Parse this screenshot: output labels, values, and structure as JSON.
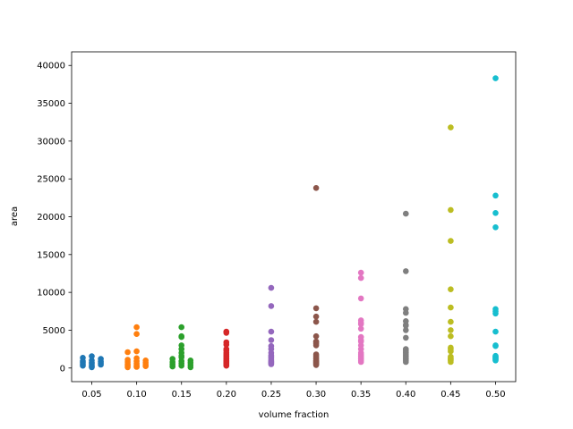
{
  "chart_data": {
    "type": "scatter",
    "title": "",
    "xlabel": "volume fraction",
    "ylabel": "area",
    "ylim": [
      -1800,
      41800
    ],
    "yticks": [
      0,
      5000,
      10000,
      15000,
      20000,
      25000,
      30000,
      35000,
      40000
    ],
    "ytick_labels": [
      "0",
      "5000",
      "10000",
      "15000",
      "20000",
      "25000",
      "30000",
      "35000",
      "40000"
    ],
    "categories": [
      "0.05",
      "0.10",
      "0.15",
      "0.20",
      "0.25",
      "0.30",
      "0.35",
      "0.40",
      "0.45",
      "0.50"
    ],
    "grid": false,
    "legend": "none",
    "colors": [
      "#1f77b4",
      "#ff7f0e",
      "#2ca02c",
      "#d62728",
      "#9467bd",
      "#8c564b",
      "#e377c2",
      "#7f7f7f",
      "#bcbd22",
      "#17becf"
    ],
    "series": [
      {
        "category": "0.05",
        "points": [
          [
            0.05,
            1550
          ],
          [
            0.04,
            1350
          ],
          [
            0.06,
            1200
          ],
          [
            0.05,
            1000
          ],
          [
            0.04,
            900
          ],
          [
            0.06,
            850
          ],
          [
            0.05,
            750
          ],
          [
            0.04,
            700
          ],
          [
            0.06,
            650
          ],
          [
            0.05,
            600
          ],
          [
            0.04,
            500
          ],
          [
            0.06,
            450
          ],
          [
            0.05,
            400
          ],
          [
            0.04,
            300
          ],
          [
            0.05,
            200
          ],
          [
            0.05,
            100
          ]
        ]
      },
      {
        "category": "0.10",
        "points": [
          [
            0.1,
            5400
          ],
          [
            0.1,
            4500
          ],
          [
            0.1,
            2200
          ],
          [
            0.09,
            2100
          ],
          [
            0.1,
            1300
          ],
          [
            0.09,
            1100
          ],
          [
            0.11,
            1000
          ],
          [
            0.1,
            900
          ],
          [
            0.09,
            800
          ],
          [
            0.11,
            700
          ],
          [
            0.1,
            600
          ],
          [
            0.09,
            500
          ],
          [
            0.11,
            450
          ],
          [
            0.1,
            400
          ],
          [
            0.09,
            300
          ],
          [
            0.11,
            250
          ],
          [
            0.1,
            200
          ],
          [
            0.1,
            150
          ],
          [
            0.09,
            100
          ]
        ]
      },
      {
        "category": "0.15",
        "points": [
          [
            0.15,
            5400
          ],
          [
            0.15,
            4200
          ],
          [
            0.15,
            4100
          ],
          [
            0.15,
            3000
          ],
          [
            0.15,
            2500
          ],
          [
            0.15,
            2000
          ],
          [
            0.15,
            1600
          ],
          [
            0.15,
            1400
          ],
          [
            0.14,
            1200
          ],
          [
            0.16,
            1000
          ],
          [
            0.15,
            900
          ],
          [
            0.14,
            800
          ],
          [
            0.16,
            700
          ],
          [
            0.15,
            600
          ],
          [
            0.14,
            500
          ],
          [
            0.16,
            400
          ],
          [
            0.15,
            300
          ],
          [
            0.14,
            200
          ],
          [
            0.16,
            100
          ]
        ]
      },
      {
        "category": "0.20",
        "points": [
          [
            0.2,
            4800
          ],
          [
            0.2,
            4650
          ],
          [
            0.2,
            3400
          ],
          [
            0.2,
            3100
          ],
          [
            0.2,
            2500
          ],
          [
            0.2,
            2300
          ],
          [
            0.2,
            2000
          ],
          [
            0.2,
            1800
          ],
          [
            0.2,
            1600
          ],
          [
            0.2,
            1400
          ],
          [
            0.2,
            1200
          ],
          [
            0.2,
            1000
          ],
          [
            0.2,
            900
          ],
          [
            0.2,
            800
          ],
          [
            0.2,
            700
          ],
          [
            0.2,
            600
          ],
          [
            0.2,
            500
          ],
          [
            0.2,
            400
          ],
          [
            0.2,
            300
          ]
        ]
      },
      {
        "category": "0.25",
        "points": [
          [
            0.25,
            10600
          ],
          [
            0.25,
            8200
          ],
          [
            0.25,
            4800
          ],
          [
            0.25,
            3700
          ],
          [
            0.25,
            2900
          ],
          [
            0.25,
            2500
          ],
          [
            0.25,
            2000
          ],
          [
            0.25,
            1700
          ],
          [
            0.25,
            1500
          ],
          [
            0.25,
            1300
          ],
          [
            0.25,
            1100
          ],
          [
            0.25,
            900
          ],
          [
            0.25,
            800
          ],
          [
            0.25,
            700
          ],
          [
            0.25,
            600
          ],
          [
            0.25,
            500
          ]
        ]
      },
      {
        "category": "0.30",
        "points": [
          [
            0.3,
            23800
          ],
          [
            0.3,
            7900
          ],
          [
            0.3,
            6800
          ],
          [
            0.3,
            6100
          ],
          [
            0.3,
            4200
          ],
          [
            0.3,
            3500
          ],
          [
            0.3,
            3400
          ],
          [
            0.3,
            3200
          ],
          [
            0.3,
            3000
          ],
          [
            0.3,
            1800
          ],
          [
            0.3,
            1600
          ],
          [
            0.3,
            1400
          ],
          [
            0.3,
            1200
          ],
          [
            0.3,
            1000
          ],
          [
            0.3,
            900
          ],
          [
            0.3,
            800
          ],
          [
            0.3,
            700
          ],
          [
            0.3,
            600
          ],
          [
            0.3,
            500
          ],
          [
            0.3,
            400
          ]
        ]
      },
      {
        "category": "0.35",
        "points": [
          [
            0.35,
            12600
          ],
          [
            0.35,
            11900
          ],
          [
            0.35,
            9200
          ],
          [
            0.35,
            6300
          ],
          [
            0.35,
            6000
          ],
          [
            0.35,
            5800
          ],
          [
            0.35,
            5200
          ],
          [
            0.35,
            4100
          ],
          [
            0.35,
            3700
          ],
          [
            0.35,
            3500
          ],
          [
            0.35,
            3000
          ],
          [
            0.35,
            2500
          ],
          [
            0.35,
            2000
          ],
          [
            0.35,
            1800
          ],
          [
            0.35,
            1600
          ],
          [
            0.35,
            1400
          ],
          [
            0.35,
            1200
          ],
          [
            0.35,
            1000
          ],
          [
            0.35,
            800
          ]
        ]
      },
      {
        "category": "0.40",
        "points": [
          [
            0.4,
            20400
          ],
          [
            0.4,
            12800
          ],
          [
            0.4,
            7800
          ],
          [
            0.4,
            7300
          ],
          [
            0.4,
            6200
          ],
          [
            0.4,
            5700
          ],
          [
            0.4,
            5600
          ],
          [
            0.4,
            5000
          ],
          [
            0.4,
            4000
          ],
          [
            0.4,
            2500
          ],
          [
            0.4,
            2300
          ],
          [
            0.4,
            2100
          ],
          [
            0.4,
            2000
          ],
          [
            0.4,
            1800
          ],
          [
            0.4,
            1600
          ],
          [
            0.4,
            1400
          ],
          [
            0.4,
            1200
          ],
          [
            0.4,
            1000
          ],
          [
            0.4,
            800
          ]
        ]
      },
      {
        "category": "0.45",
        "points": [
          [
            0.45,
            31800
          ],
          [
            0.45,
            20900
          ],
          [
            0.45,
            16800
          ],
          [
            0.45,
            10400
          ],
          [
            0.45,
            8000
          ],
          [
            0.45,
            6100
          ],
          [
            0.45,
            5000
          ],
          [
            0.45,
            4200
          ],
          [
            0.45,
            2700
          ],
          [
            0.45,
            2500
          ],
          [
            0.45,
            2200
          ],
          [
            0.45,
            1500
          ],
          [
            0.45,
            1300
          ],
          [
            0.45,
            1200
          ],
          [
            0.45,
            1100
          ],
          [
            0.45,
            1000
          ],
          [
            0.45,
            800
          ]
        ]
      },
      {
        "category": "0.50",
        "points": [
          [
            0.5,
            38300
          ],
          [
            0.5,
            22800
          ],
          [
            0.5,
            20500
          ],
          [
            0.5,
            18600
          ],
          [
            0.5,
            7800
          ],
          [
            0.5,
            7500
          ],
          [
            0.5,
            7200
          ],
          [
            0.5,
            4800
          ],
          [
            0.5,
            3000
          ],
          [
            0.5,
            2900
          ],
          [
            0.5,
            1600
          ],
          [
            0.5,
            1500
          ],
          [
            0.5,
            1400
          ],
          [
            0.5,
            1300
          ],
          [
            0.5,
            1200
          ],
          [
            0.5,
            1100
          ],
          [
            0.5,
            1000
          ]
        ]
      }
    ]
  }
}
